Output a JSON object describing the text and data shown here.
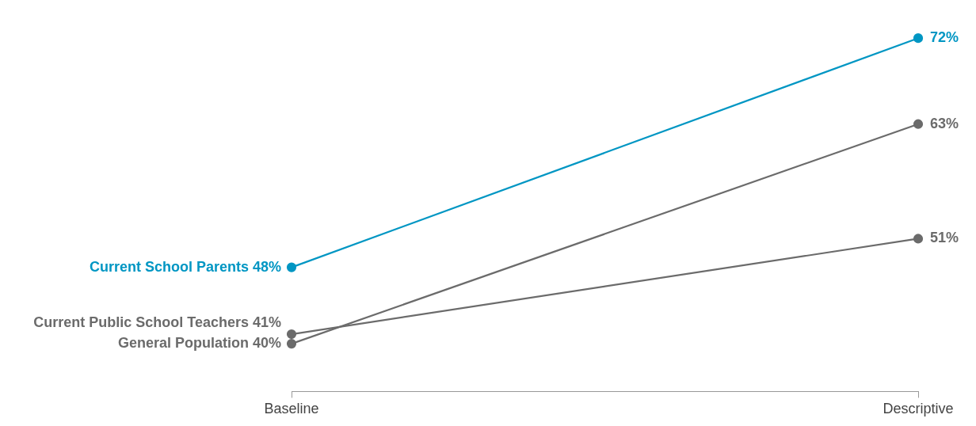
{
  "chart_data": {
    "type": "line",
    "categories": [
      "Baseline",
      "Descriptive"
    ],
    "series": [
      {
        "name": "Current School Parents",
        "color": "#0096c3",
        "values": [
          48,
          72
        ],
        "value_labels": [
          "48%",
          "72%"
        ]
      },
      {
        "name": "Current Public School Teachers",
        "color": "#6b6b6b",
        "values": [
          41,
          51
        ],
        "value_labels": [
          "41%",
          "51%"
        ]
      },
      {
        "name": "General Population",
        "color": "#6b6b6b",
        "values": [
          40,
          63
        ],
        "value_labels": [
          "40%",
          "63%"
        ]
      }
    ],
    "legend": false,
    "grid": false,
    "marker": "circle",
    "line_style": "solid",
    "tick_labels": "x"
  }
}
